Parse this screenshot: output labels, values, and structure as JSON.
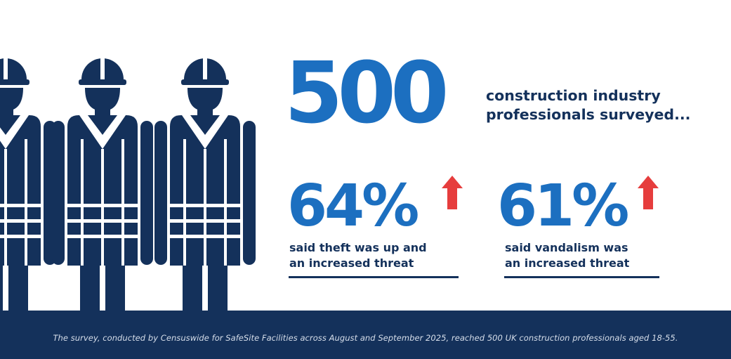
{
  "colors": {
    "navy": "#14315b",
    "blue": "#1c6fc0",
    "red": "#e63d3d",
    "white": "#ffffff"
  },
  "illustration": {
    "figure_count": 3,
    "figure_icon": "construction-worker-icon"
  },
  "headline": {
    "number": "500",
    "caption_line1": "construction industry",
    "caption_line2": "professionals surveyed..."
  },
  "stats": [
    {
      "value": "64%",
      "trend_icon": "arrow-up-icon",
      "caption_line1": "said theft was up and",
      "caption_line2": "an increased threat"
    },
    {
      "value": "61%",
      "trend_icon": "arrow-up-icon",
      "caption_line1": "said vandalism was",
      "caption_line2": "an increased threat"
    }
  ],
  "footer": {
    "note": "The survey, conducted by Censuswide for SafeSite Facilities across August and September 2025, reached 500 UK construction professionals aged 18-55."
  }
}
